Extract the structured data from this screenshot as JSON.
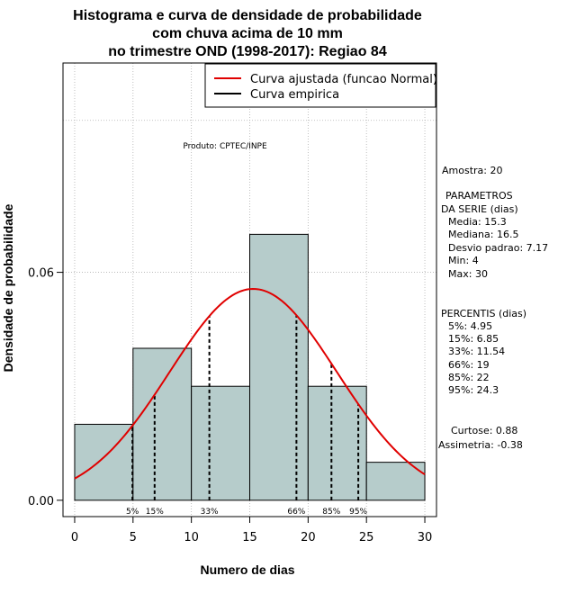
{
  "chart_data": {
    "type": "bar",
    "title_lines": [
      "Histograma e curva de densidade de probabilidade",
      "com chuva acima de 10 mm",
      "no trimestre OND (1998-2017): Regiao 84"
    ],
    "xlabel": "Numero de dias",
    "ylabel": "Densidade de probabilidade",
    "xlim": [
      -1,
      31
    ],
    "ylim": [
      -0.0043,
      0.1151
    ],
    "x_ticks": [
      0,
      5,
      10,
      15,
      20,
      25,
      30
    ],
    "y_ticks": [
      0.0,
      0.06
    ],
    "y_tick_labels": [
      "0.00",
      "0.06"
    ],
    "grid_x": [
      0,
      5,
      10,
      15,
      20,
      25,
      30
    ],
    "grid_y": [
      0.06,
      0.1
    ],
    "bins": [
      {
        "x0": 0,
        "x1": 5,
        "density": 0.02
      },
      {
        "x0": 5,
        "x1": 10,
        "density": 0.04
      },
      {
        "x0": 10,
        "x1": 15,
        "density": 0.03
      },
      {
        "x0": 15,
        "x1": 20,
        "density": 0.07
      },
      {
        "x0": 20,
        "x1": 25,
        "density": 0.03
      },
      {
        "x0": 25,
        "x1": 30,
        "density": 0.01
      }
    ],
    "normal_fit": {
      "mean": 15.3,
      "sd": 7.17,
      "x_range": [
        0,
        30
      ]
    },
    "percentile_lines": [
      {
        "label": "5%",
        "x": 4.95
      },
      {
        "label": "15%",
        "x": 6.85
      },
      {
        "label": "33%",
        "x": 11.54
      },
      {
        "label": "66%",
        "x": 19
      },
      {
        "label": "85%",
        "x": 22
      },
      {
        "label": "95%",
        "x": 24.3
      }
    ],
    "legend": {
      "position": "top-right",
      "entries": [
        {
          "label": "Curva ajustada (funcao Normal)",
          "color": "#e00000"
        },
        {
          "label": "Curva empirica",
          "color": "#000000"
        }
      ]
    },
    "annotation": "Produto: CPTEC/INPE",
    "colors": {
      "bar_fill": "#b6cccb",
      "bar_stroke": "#000000",
      "curve": "#e00000",
      "grid": "#b0b0b0"
    }
  },
  "stats_panel": {
    "amostra": "Amostra: 20",
    "param_header_1": "PARAMETROS",
    "param_header_2": "DA SERIE (dias)",
    "media": "Media: 15.3",
    "mediana": "Mediana: 16.5",
    "desvio": "Desvio padrao: 7.17",
    "min": "Min: 4",
    "max": "Max: 30",
    "perc_header": "PERCENTIS (dias)",
    "p5": "5%: 4.95",
    "p15": "15%: 6.85",
    "p33": "33%: 11.54",
    "p66": "66%: 19",
    "p85": "85%: 22",
    "p95": "95%: 24.3",
    "curtose": "Curtose: 0.88",
    "assimetria": "Assimetria: -0.38"
  }
}
